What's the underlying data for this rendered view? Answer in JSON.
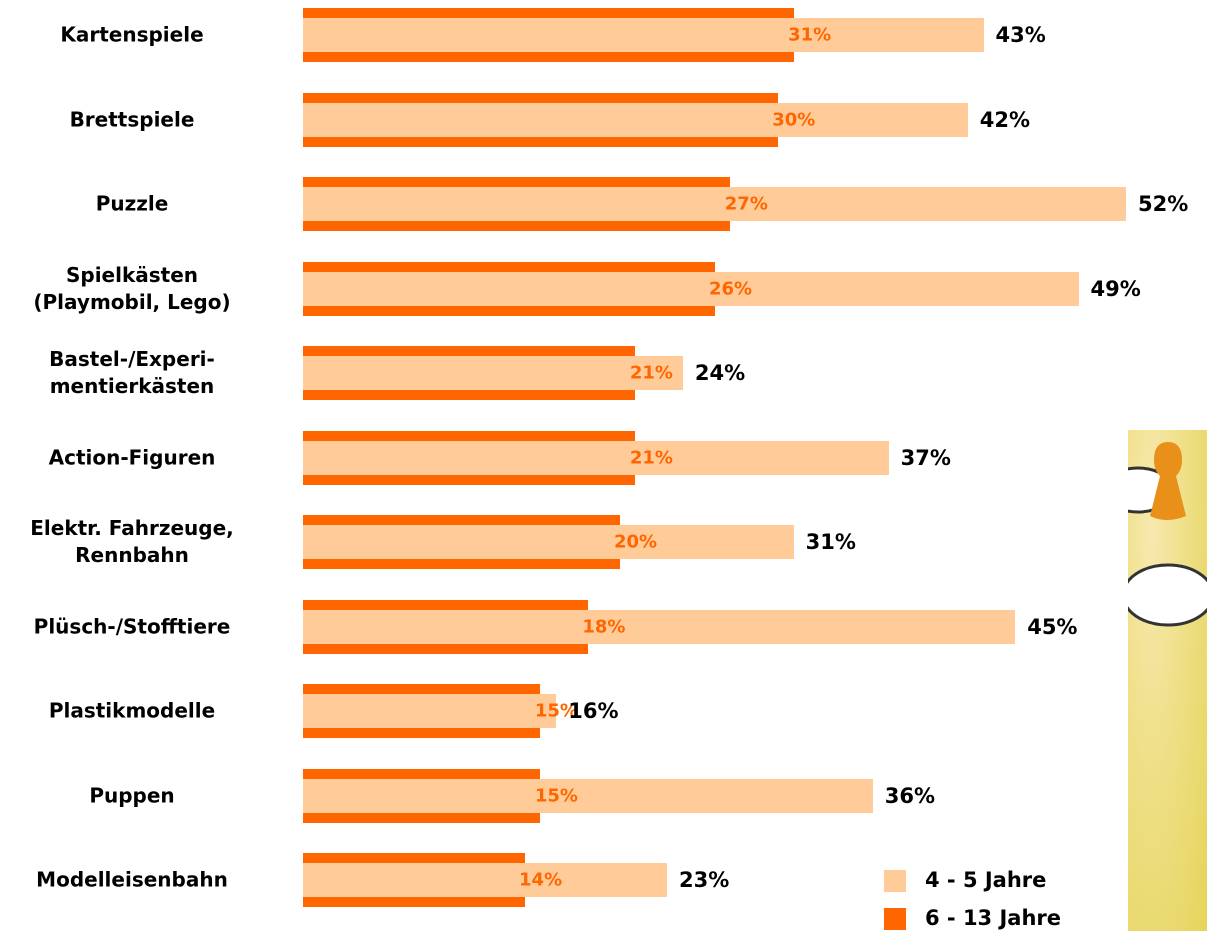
{
  "chart_data": {
    "type": "overlap-bar",
    "categories": [
      "Kartenspiele",
      "Brettspiele",
      "Puzzle",
      "Spielkästen\n(Playmobil, Lego)",
      "Bastel-/Experi-\nmentierkästen",
      "Action-Figuren",
      "Elektr. Fahrzeuge,\nRennbahn",
      "Plüsch-/Stofftiere",
      "Plastikmodelle",
      "Puppen",
      "Modelleisenbahn"
    ],
    "series": [
      {
        "name": "4 - 5 Jahre",
        "color": "#ffcc99",
        "values": [
          43,
          42,
          52,
          49,
          24,
          37,
          31,
          45,
          16,
          36,
          23
        ],
        "value_labels": [
          "43%",
          "42%",
          "52%",
          "49%",
          "24%",
          "37%",
          "31%",
          "45%",
          "16%",
          "36%",
          "23%"
        ]
      },
      {
        "name": "6 - 13 Jahre",
        "color": "#ff6600",
        "values": [
          31,
          30,
          27,
          26,
          21,
          21,
          20,
          18,
          15,
          15,
          14
        ],
        "value_labels": [
          "31%",
          "30%",
          "27%",
          "26%",
          "21%",
          "21%",
          "20%",
          "18%",
          "15%",
          "15%",
          "14%"
        ]
      }
    ]
  }
}
